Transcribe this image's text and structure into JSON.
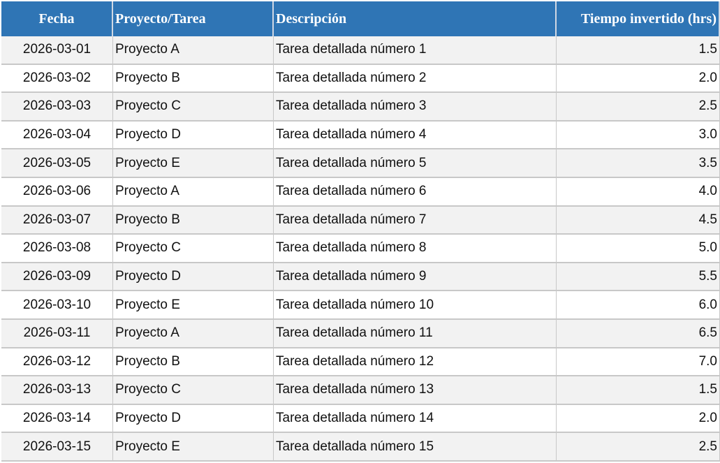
{
  "table": {
    "header": [
      "Fecha",
      "Proyecto/Tarea",
      "Descripción",
      "Tiempo invertido (hrs)"
    ],
    "rows": [
      [
        "2026-03-01",
        "Proyecto A",
        "Tarea detallada número 1",
        "1.5"
      ],
      [
        "2026-03-02",
        "Proyecto B",
        "Tarea detallada número 2",
        "2.0"
      ],
      [
        "2026-03-03",
        "Proyecto C",
        "Tarea detallada número 3",
        "2.5"
      ],
      [
        "2026-03-04",
        "Proyecto D",
        "Tarea detallada número 4",
        "3.0"
      ],
      [
        "2026-03-05",
        "Proyecto E",
        "Tarea detallada número 5",
        "3.5"
      ],
      [
        "2026-03-06",
        "Proyecto A",
        "Tarea detallada número 6",
        "4.0"
      ],
      [
        "2026-03-07",
        "Proyecto B",
        "Tarea detallada número 7",
        "4.5"
      ],
      [
        "2026-03-08",
        "Proyecto C",
        "Tarea detallada número 8",
        "5.0"
      ],
      [
        "2026-03-09",
        "Proyecto D",
        "Tarea detallada número 9",
        "5.5"
      ],
      [
        "2026-03-10",
        "Proyecto E",
        "Tarea detallada número 10",
        "6.0"
      ],
      [
        "2026-03-11",
        "Proyecto A",
        "Tarea detallada número 11",
        "6.5"
      ],
      [
        "2026-03-12",
        "Proyecto B",
        "Tarea detallada número 12",
        "7.0"
      ],
      [
        "2026-03-13",
        "Proyecto C",
        "Tarea detallada número 13",
        "1.5"
      ],
      [
        "2026-03-14",
        "Proyecto D",
        "Tarea detallada número 14",
        "2.0"
      ],
      [
        "2026-03-15",
        "Proyecto E",
        "Tarea detallada número 15",
        "2.5"
      ]
    ]
  }
}
